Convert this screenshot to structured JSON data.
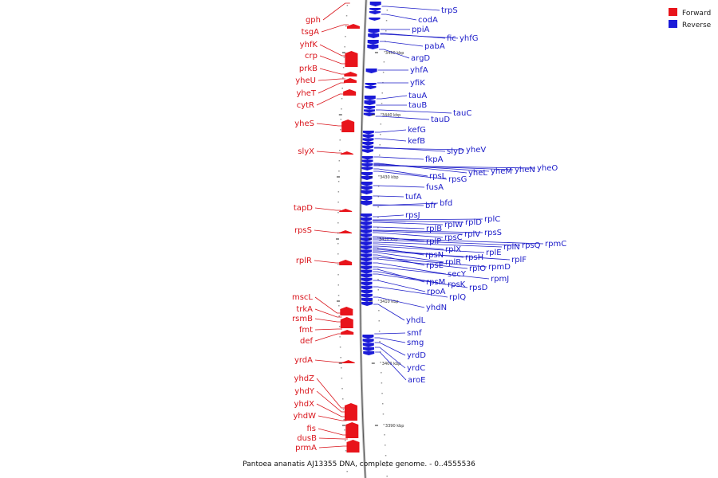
{
  "legend": [
    {
      "label": "Forward",
      "color": "#e8141b"
    },
    {
      "label": "Reverse",
      "color": "#1b1bd8"
    }
  ],
  "caption": "Pantoea ananatis AJ13355 DNA, complete genome. - 0..4555536",
  "ticks": [
    {
      "label": "3450 kbp"
    },
    {
      "label": "3440 kbp"
    },
    {
      "label": "3430 kbp"
    },
    {
      "label": "3420 kbp"
    },
    {
      "label": "3410 kbp"
    },
    {
      "label": "3400 kbp"
    },
    {
      "label": "3390 kbp"
    }
  ],
  "forward_genes": [
    "gph",
    "tsgA",
    "yhfK",
    "crp",
    "prkB",
    "yheU",
    "yheT",
    "cytR",
    "yheS",
    "slyX",
    "tapD",
    "rpsS",
    "rplR",
    "mscL",
    "trkA",
    "rsmB",
    "fmt",
    "def",
    "yrdA",
    "yhdZ",
    "yhdY",
    "yhdX",
    "yhdW",
    "fis",
    "dusB",
    "prmA"
  ],
  "reverse_genes": [
    "trpS",
    "codA",
    "ppiA",
    "fic",
    "yhfG",
    "pabA",
    "argD",
    "yhfA",
    "yfiK",
    "tauA",
    "tauB",
    "tauC",
    "tauD",
    "kefG",
    "kefB",
    "slyD",
    "yheV",
    "fkpA",
    "yheL",
    "yheM",
    "yheN",
    "yheO",
    "rpsL",
    "rpsG",
    "fusA",
    "tufA",
    "bfr",
    "bfd",
    "rpsJ",
    "rplC",
    "rplD",
    "rplW",
    "rplB",
    "rpsS",
    "rplV",
    "rpsC",
    "rplP",
    "rpmC",
    "rpsQ",
    "rplN",
    "rplX",
    "rplE",
    "rpsN",
    "rpsH",
    "rplF",
    "rplR",
    "rpsE",
    "rpmD",
    "rplO",
    "secY",
    "rpmJ",
    "rpsM",
    "rpsK",
    "rpsD",
    "rpoA",
    "rplQ",
    "yhdN",
    "yhdL",
    "smf",
    "smg",
    "yrdD",
    "yrdC",
    "aroE"
  ]
}
